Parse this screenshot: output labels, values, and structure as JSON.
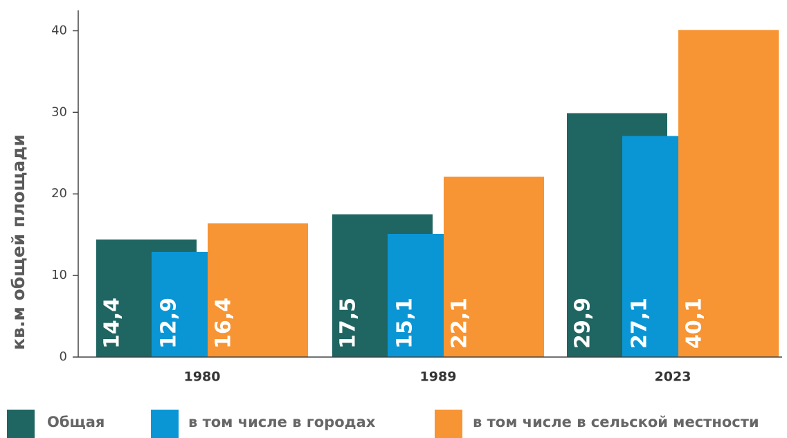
{
  "chart_data": {
    "type": "bar",
    "y_label": "кв.м общей площади",
    "categories": [
      "1980",
      "1989",
      "2023"
    ],
    "series": [
      {
        "name": "Общая",
        "color": "#1f6562",
        "values": [
          14.4,
          17.5,
          29.9
        ],
        "value_labels": [
          "14,4",
          "17,5",
          "29,9"
        ]
      },
      {
        "name": "в том числе в городах",
        "color": "#0a96d5",
        "values": [
          12.9,
          15.1,
          27.1
        ],
        "value_labels": [
          "12,9",
          "15,1",
          "27,1"
        ]
      },
      {
        "name": "в том числе в сельской местности",
        "color": "#f79433",
        "values": [
          16.4,
          22.1,
          40.1
        ],
        "value_labels": [
          "16,4",
          "22,1",
          "40,1"
        ]
      }
    ],
    "ylim": [
      0,
      42.5
    ],
    "yticks": [
      0,
      10,
      20,
      30,
      40
    ]
  }
}
